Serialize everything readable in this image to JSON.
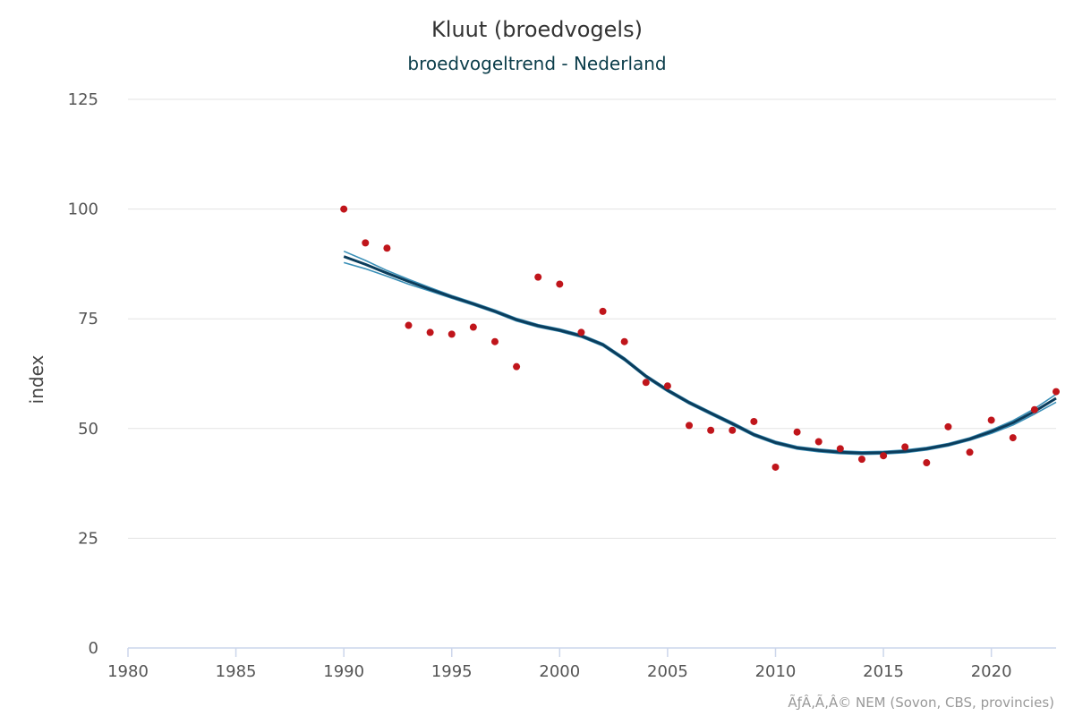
{
  "chart_data": {
    "type": "scatter",
    "title": "Kluut (broedvogels)",
    "subtitle": "broedvogeltrend - Nederland",
    "ylabel": "index",
    "xlabel": "",
    "xlim": [
      1980,
      2023
    ],
    "ylim": [
      0,
      125
    ],
    "x_ticks": [
      1980,
      1985,
      1990,
      1995,
      2000,
      2005,
      2010,
      2015,
      2020
    ],
    "y_ticks": [
      0,
      25,
      50,
      75,
      100,
      125
    ],
    "grid": true,
    "colors": {
      "points": "#c0151b",
      "trend": "#0b3d5c",
      "band": "#3a8fb7",
      "grid": "#e3e3e3",
      "axis": "#ccd6eb"
    },
    "series": [
      {
        "kind": "points",
        "x": [
          1990,
          1991,
          1992,
          1993,
          1994,
          1995,
          1996,
          1997,
          1998,
          1999,
          2000,
          2001,
          2002,
          2003,
          2004,
          2005,
          2006,
          2007,
          2008,
          2009,
          2010,
          2011,
          2012,
          2013,
          2014,
          2015,
          2016,
          2017,
          2018,
          2019,
          2020,
          2021,
          2022,
          2023
        ],
        "y": [
          100,
          92.3,
          91.1,
          73.5,
          71.9,
          71.5,
          73.1,
          69.8,
          64.1,
          84.5,
          82.9,
          71.9,
          76.7,
          69.8,
          60.5,
          59.7,
          50.7,
          49.6,
          49.6,
          51.6,
          41.2,
          49.2,
          47.0,
          45.4,
          43.0,
          43.8,
          45.8,
          42.2,
          50.4,
          44.6,
          51.9,
          47.9,
          54.3,
          58.4
        ]
      },
      {
        "kind": "trend",
        "x": [
          1990,
          1991,
          1992,
          1993,
          1994,
          1995,
          1996,
          1997,
          1998,
          1999,
          2000,
          2001,
          2002,
          2003,
          2004,
          2005,
          2006,
          2007,
          2008,
          2009,
          2010,
          2011,
          2012,
          2013,
          2014,
          2015,
          2016,
          2017,
          2018,
          2019,
          2020,
          2021,
          2022,
          2023
        ],
        "y": [
          89.2,
          87.4,
          85.4,
          83.5,
          81.7,
          80.0,
          78.4,
          76.7,
          74.8,
          73.4,
          72.4,
          71.1,
          69.1,
          65.8,
          61.9,
          58.7,
          55.9,
          53.5,
          51.1,
          48.6,
          46.8,
          45.6,
          45.0,
          44.6,
          44.4,
          44.5,
          44.8,
          45.4,
          46.3,
          47.6,
          49.3,
          51.3,
          53.9,
          56.9
        ]
      },
      {
        "kind": "upper",
        "x": [
          1990,
          1991,
          1992,
          1993,
          1994,
          1995,
          1996,
          1997,
          1998,
          1999,
          2000,
          2001,
          2002,
          2003,
          2004,
          2005,
          2006,
          2007,
          2008,
          2009,
          2010,
          2011,
          2012,
          2013,
          2014,
          2015,
          2016,
          2017,
          2018,
          2019,
          2020,
          2021,
          2022,
          2023
        ],
        "y": [
          90.4,
          88.3,
          86.0,
          84.0,
          82.1,
          80.3,
          78.7,
          77.0,
          75.1,
          73.7,
          72.7,
          71.4,
          69.4,
          66.1,
          62.2,
          59.0,
          56.2,
          53.8,
          51.4,
          48.9,
          47.1,
          45.9,
          45.3,
          44.9,
          44.7,
          44.8,
          45.1,
          45.7,
          46.6,
          47.9,
          49.7,
          51.8,
          54.5,
          57.8
        ]
      },
      {
        "kind": "lower",
        "x": [
          1990,
          1991,
          1992,
          1993,
          1994,
          1995,
          1996,
          1997,
          1998,
          1999,
          2000,
          2001,
          2002,
          2003,
          2004,
          2005,
          2006,
          2007,
          2008,
          2009,
          2010,
          2011,
          2012,
          2013,
          2014,
          2015,
          2016,
          2017,
          2018,
          2019,
          2020,
          2021,
          2022,
          2023
        ],
        "y": [
          87.8,
          86.4,
          84.7,
          82.9,
          81.3,
          79.7,
          78.1,
          76.4,
          74.5,
          73.1,
          72.1,
          70.8,
          68.8,
          65.5,
          61.6,
          58.4,
          55.6,
          53.2,
          50.8,
          48.3,
          46.5,
          45.3,
          44.7,
          44.3,
          44.1,
          44.2,
          44.5,
          45.1,
          46.0,
          47.3,
          48.9,
          50.8,
          53.3,
          56.0
        ]
      }
    ]
  },
  "credit": "ÃƒÂ‚Ã‚Â© NEM (Sovon, CBS, provincies)"
}
